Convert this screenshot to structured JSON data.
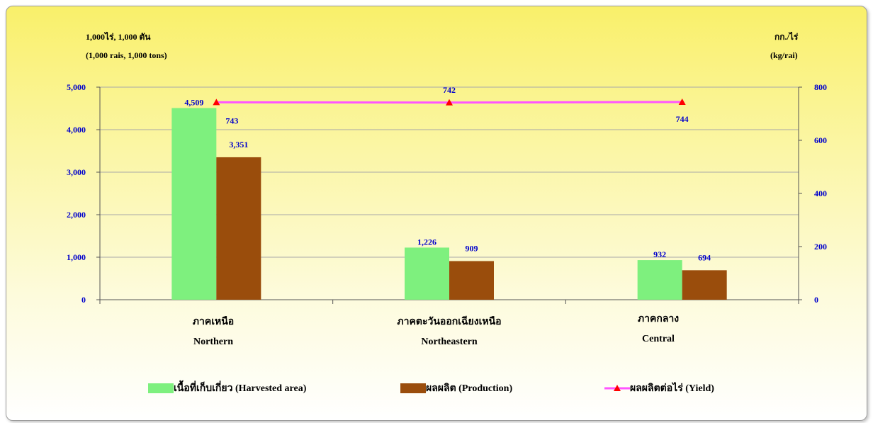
{
  "units": {
    "left_line1": "1,000ไร่,  1,000 ตัน",
    "left_line2": "(1,000 rais,  1,000 tons)",
    "right_line1": "กก./ไร่",
    "right_line2": "(kg/rai)"
  },
  "regions": [
    {
      "thai": "ภาคเหนือ",
      "english": "Northern"
    },
    {
      "thai": "ภาคตะวันออกเฉียงเหนือ",
      "english": "Northeastern"
    },
    {
      "thai": "ภาคกลาง",
      "english": "Central"
    }
  ],
  "legend": {
    "area": "เนื้อที่เก็บเกี่ยว (Harvested area)",
    "production": "ผลผลิต (Production)",
    "yield": "ผลผลิตต่อไร่ (Yield)"
  },
  "colors": {
    "area": "#7ef07e",
    "production": "#9a4d0c",
    "yield_line": "#ff55ff",
    "yield_marker": "#ff0000",
    "label": "#0000cc"
  },
  "chart_data": {
    "type": "bar",
    "categories": [
      "ภาคเหนือ Northern",
      "ภาคตะวันออกเฉียงเหนือ Northeastern",
      "ภาคกลาง Central"
    ],
    "series": [
      {
        "name": "เนื้อที่เก็บเกี่ยว (Harvested area)",
        "axis": "left",
        "values": [
          4509,
          1226,
          932
        ],
        "labels": [
          "4,509",
          "1,226",
          "932"
        ]
      },
      {
        "name": "ผลผลิต (Production)",
        "axis": "left",
        "values": [
          3351,
          909,
          694
        ],
        "labels": [
          "3,351",
          "909",
          "694"
        ]
      },
      {
        "name": "ผลผลิตต่อไร่ (Yield)",
        "axis": "right",
        "type": "line",
        "values": [
          743,
          742,
          744
        ],
        "labels": [
          "743",
          "742",
          "744"
        ]
      }
    ],
    "left_axis": {
      "ylim": [
        0,
        5000
      ],
      "ticks": [
        "0",
        "1,000",
        "2,000",
        "3,000",
        "4,000",
        "5,000"
      ],
      "tick_values": [
        0,
        1000,
        2000,
        3000,
        4000,
        5000
      ]
    },
    "right_axis": {
      "ylim": [
        0,
        800
      ],
      "ticks": [
        "0",
        "200",
        "400",
        "600",
        "800"
      ],
      "tick_values": [
        0,
        200,
        400,
        600,
        800
      ]
    },
    "grid": true,
    "legend_position": "bottom"
  }
}
